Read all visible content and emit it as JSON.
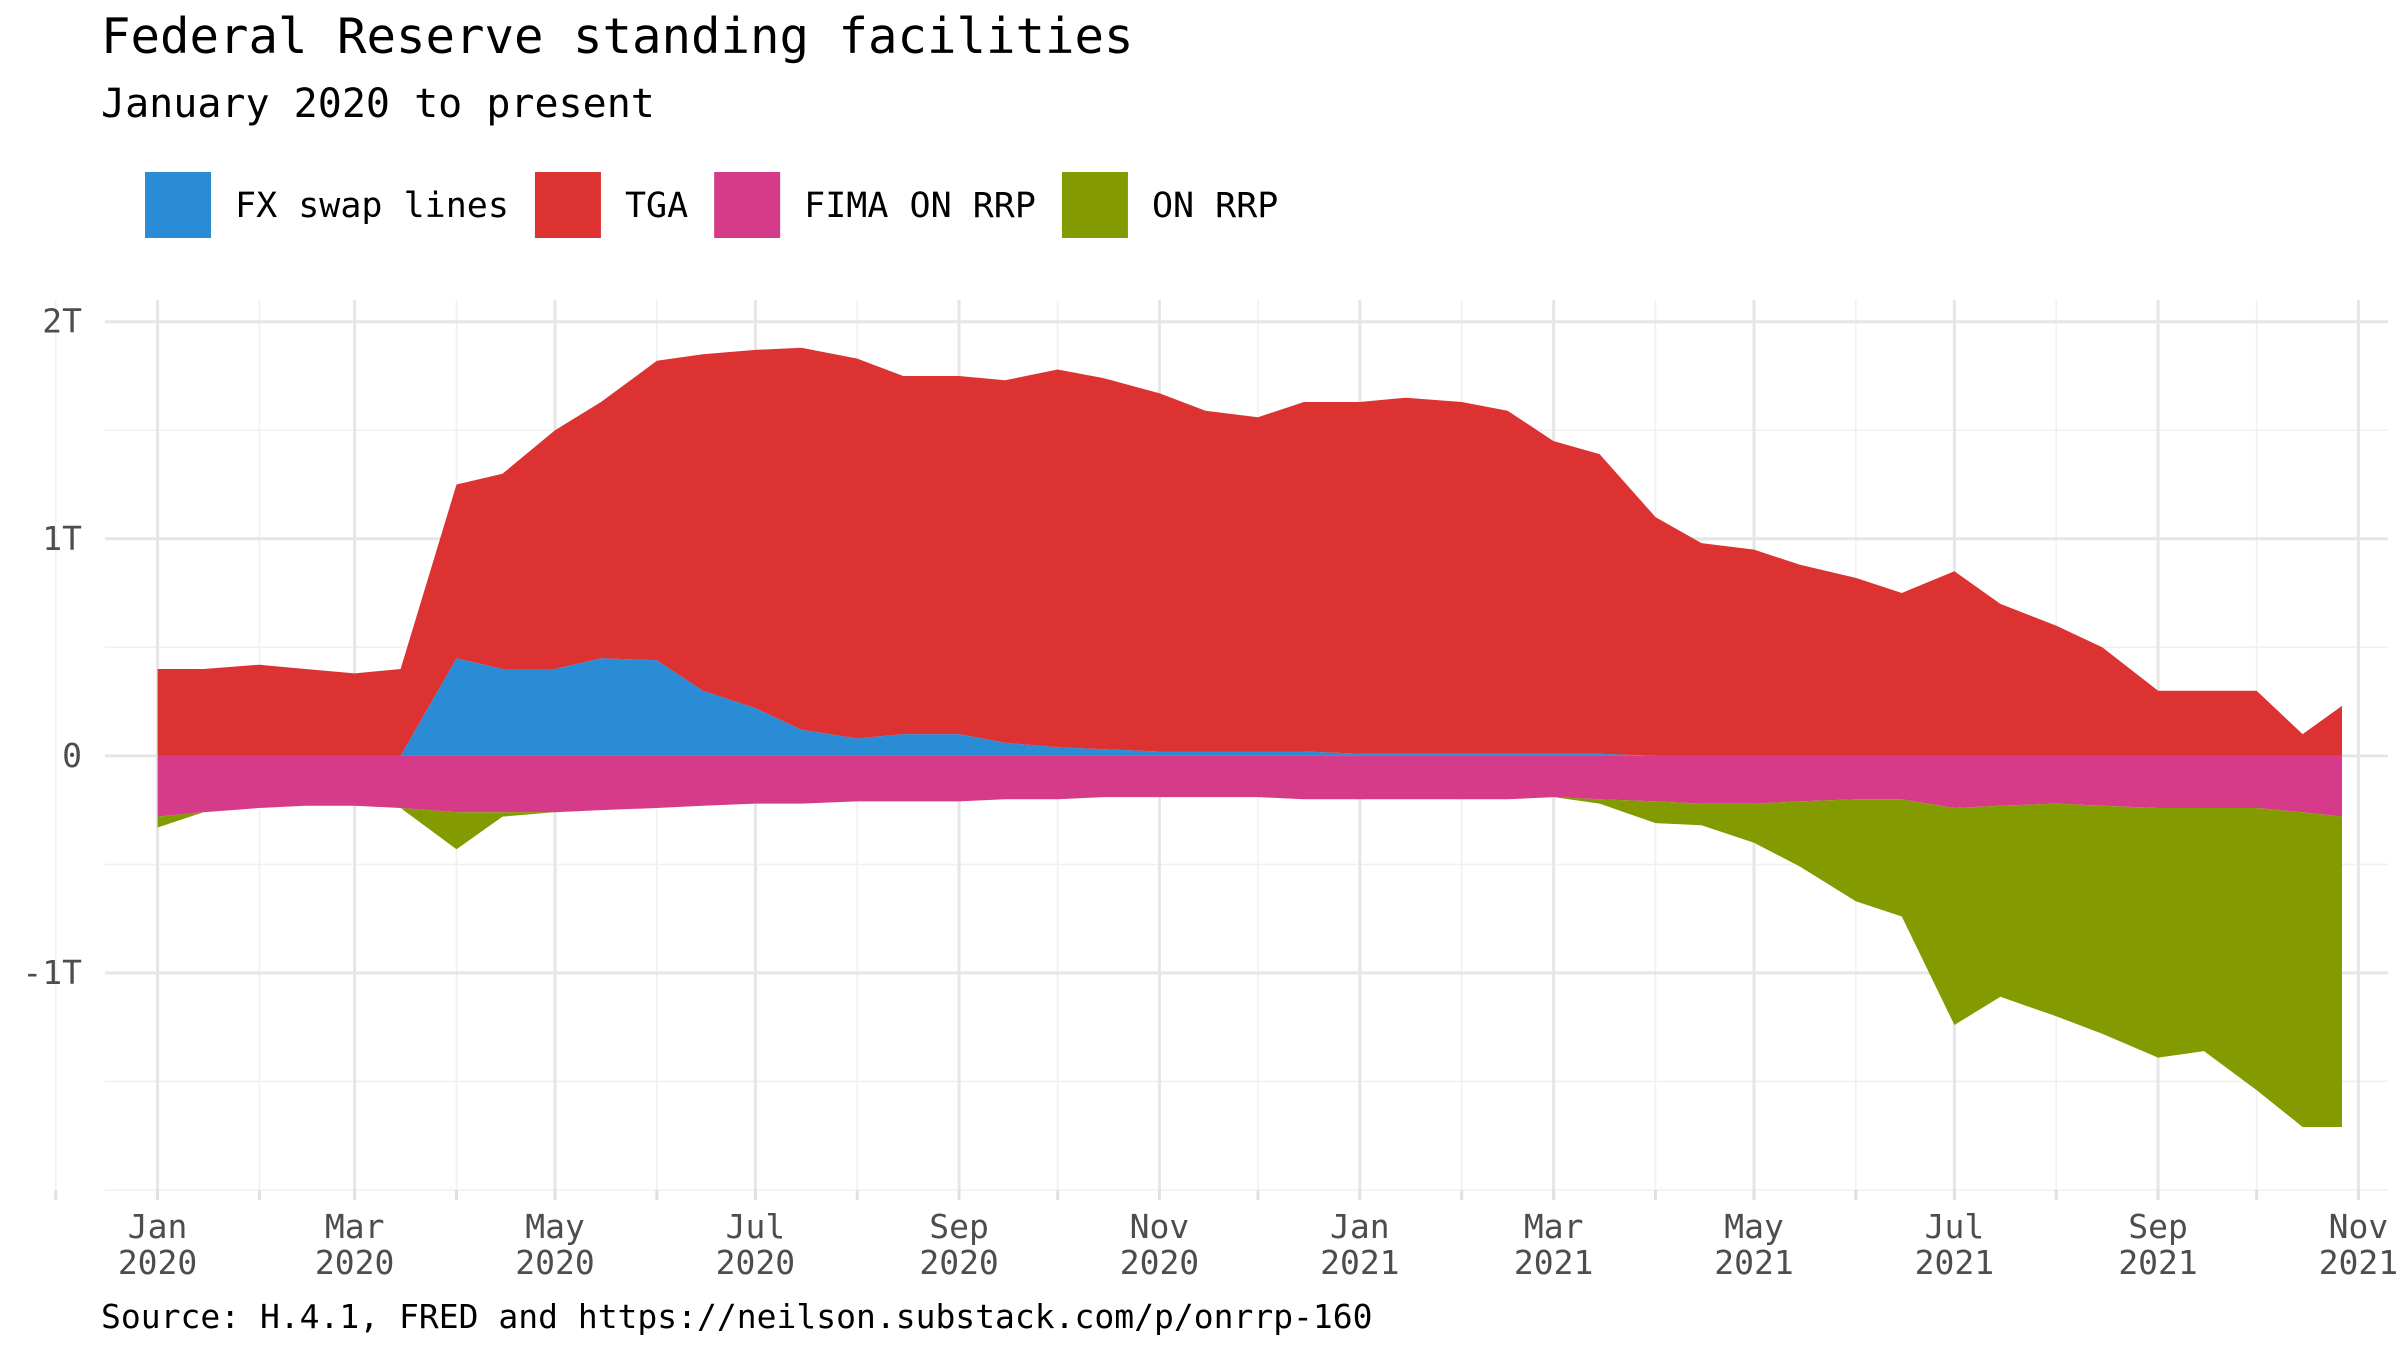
{
  "chart_data": {
    "type": "area",
    "stacked": true,
    "title": "Federal Reserve standing facilities",
    "subtitle": "January 2020 to present",
    "caption": "Source: H.4.1, FRED and https://neilson.substack.com/p/onrrp-160",
    "legend_position": "top-left",
    "grid": true,
    "xlabel": "",
    "ylabel": "",
    "xlim": [
      "2019-12-16",
      "2021-11-10"
    ],
    "ylim": [
      -2.0,
      2.1
    ],
    "y_unit": "trillions of dollars",
    "y_ticks": [
      {
        "value": 2,
        "label": "2T"
      },
      {
        "value": 1,
        "label": "1T"
      },
      {
        "value": 0,
        "label": "0"
      },
      {
        "value": -1,
        "label": "-1T"
      }
    ],
    "x_ticks": [
      {
        "date": "2020-01-01",
        "month": "Jan",
        "year": "2020"
      },
      {
        "date": "2020-03-01",
        "month": "Mar",
        "year": "2020"
      },
      {
        "date": "2020-05-01",
        "month": "May",
        "year": "2020"
      },
      {
        "date": "2020-07-01",
        "month": "Jul",
        "year": "2020"
      },
      {
        "date": "2020-09-01",
        "month": "Sep",
        "year": "2020"
      },
      {
        "date": "2020-11-01",
        "month": "Nov",
        "year": "2020"
      },
      {
        "date": "2021-01-01",
        "month": "Jan",
        "year": "2021"
      },
      {
        "date": "2021-03-01",
        "month": "Mar",
        "year": "2021"
      },
      {
        "date": "2021-05-01",
        "month": "May",
        "year": "2021"
      },
      {
        "date": "2021-07-01",
        "month": "Jul",
        "year": "2021"
      },
      {
        "date": "2021-09-01",
        "month": "Sep",
        "year": "2021"
      },
      {
        "date": "2021-11-01",
        "month": "Nov",
        "year": "2021"
      }
    ],
    "x_minor_ticks": [
      "2019-12-01",
      "2020-02-01",
      "2020-04-01",
      "2020-06-01",
      "2020-08-01",
      "2020-10-01",
      "2020-12-01",
      "2021-02-01",
      "2021-04-01",
      "2021-06-01",
      "2021-08-01",
      "2021-10-01"
    ],
    "x": [
      "2020-01-01",
      "2020-01-15",
      "2020-02-01",
      "2020-02-15",
      "2020-03-01",
      "2020-03-15",
      "2020-04-01",
      "2020-04-15",
      "2020-05-01",
      "2020-05-15",
      "2020-06-01",
      "2020-06-15",
      "2020-07-01",
      "2020-07-15",
      "2020-08-01",
      "2020-08-15",
      "2020-09-01",
      "2020-09-15",
      "2020-10-01",
      "2020-10-15",
      "2020-11-01",
      "2020-11-15",
      "2020-12-01",
      "2020-12-15",
      "2021-01-01",
      "2021-01-15",
      "2021-02-01",
      "2021-02-15",
      "2021-03-01",
      "2021-03-15",
      "2021-04-01",
      "2021-04-15",
      "2021-05-01",
      "2021-05-15",
      "2021-06-01",
      "2021-06-15",
      "2021-07-01",
      "2021-07-15",
      "2021-08-01",
      "2021-08-15",
      "2021-09-01",
      "2021-09-15",
      "2021-10-01",
      "2021-10-15",
      "2021-10-27"
    ],
    "series": [
      {
        "name": "FX swap lines",
        "color": "#2b8cd6",
        "sign": "positive",
        "values": [
          0,
          0,
          0,
          0,
          0,
          0,
          0.45,
          0.4,
          0.4,
          0.45,
          0.44,
          0.3,
          0.22,
          0.12,
          0.08,
          0.1,
          0.1,
          0.06,
          0.04,
          0.03,
          0.02,
          0.02,
          0.02,
          0.02,
          0.01,
          0.01,
          0.01,
          0.01,
          0.01,
          0.01,
          0.0,
          0,
          0,
          0,
          0,
          0,
          0,
          0,
          0,
          0,
          0,
          0,
          0,
          0,
          0
        ]
      },
      {
        "name": "TGA",
        "color": "#dc3232",
        "sign": "positive",
        "values": [
          0.4,
          0.4,
          0.42,
          0.4,
          0.38,
          0.4,
          0.8,
          0.9,
          1.1,
          1.18,
          1.38,
          1.55,
          1.65,
          1.76,
          1.75,
          1.65,
          1.65,
          1.67,
          1.74,
          1.71,
          1.65,
          1.57,
          1.54,
          1.61,
          1.62,
          1.64,
          1.62,
          1.58,
          1.44,
          1.38,
          1.1,
          0.98,
          0.95,
          0.88,
          0.82,
          0.75,
          0.85,
          0.7,
          0.6,
          0.5,
          0.3,
          0.3,
          0.3,
          0.1,
          0.23
        ]
      },
      {
        "name": "FIMA ON RRP",
        "color": "#d63b8a",
        "sign": "negative",
        "values": [
          0.28,
          0.26,
          0.24,
          0.23,
          0.23,
          0.24,
          0.26,
          0.26,
          0.26,
          0.25,
          0.24,
          0.23,
          0.22,
          0.22,
          0.21,
          0.21,
          0.21,
          0.2,
          0.2,
          0.19,
          0.19,
          0.19,
          0.19,
          0.2,
          0.2,
          0.2,
          0.2,
          0.2,
          0.19,
          0.2,
          0.21,
          0.22,
          0.22,
          0.21,
          0.2,
          0.2,
          0.24,
          0.23,
          0.22,
          0.23,
          0.24,
          0.24,
          0.24,
          0.26,
          0.28
        ]
      },
      {
        "name": "ON RRP",
        "color": "#839b00",
        "sign": "negative",
        "values": [
          0.05,
          0,
          0,
          0,
          0,
          0,
          0.17,
          0.02,
          0,
          0,
          0,
          0,
          0,
          0,
          0,
          0,
          0,
          0,
          0,
          0,
          0,
          0,
          0,
          0,
          0,
          0,
          0,
          0,
          0,
          0.02,
          0.1,
          0.1,
          0.18,
          0.3,
          0.47,
          0.54,
          1.0,
          0.88,
          0.98,
          1.05,
          1.15,
          1.12,
          1.3,
          1.45,
          1.43
        ]
      }
    ]
  }
}
